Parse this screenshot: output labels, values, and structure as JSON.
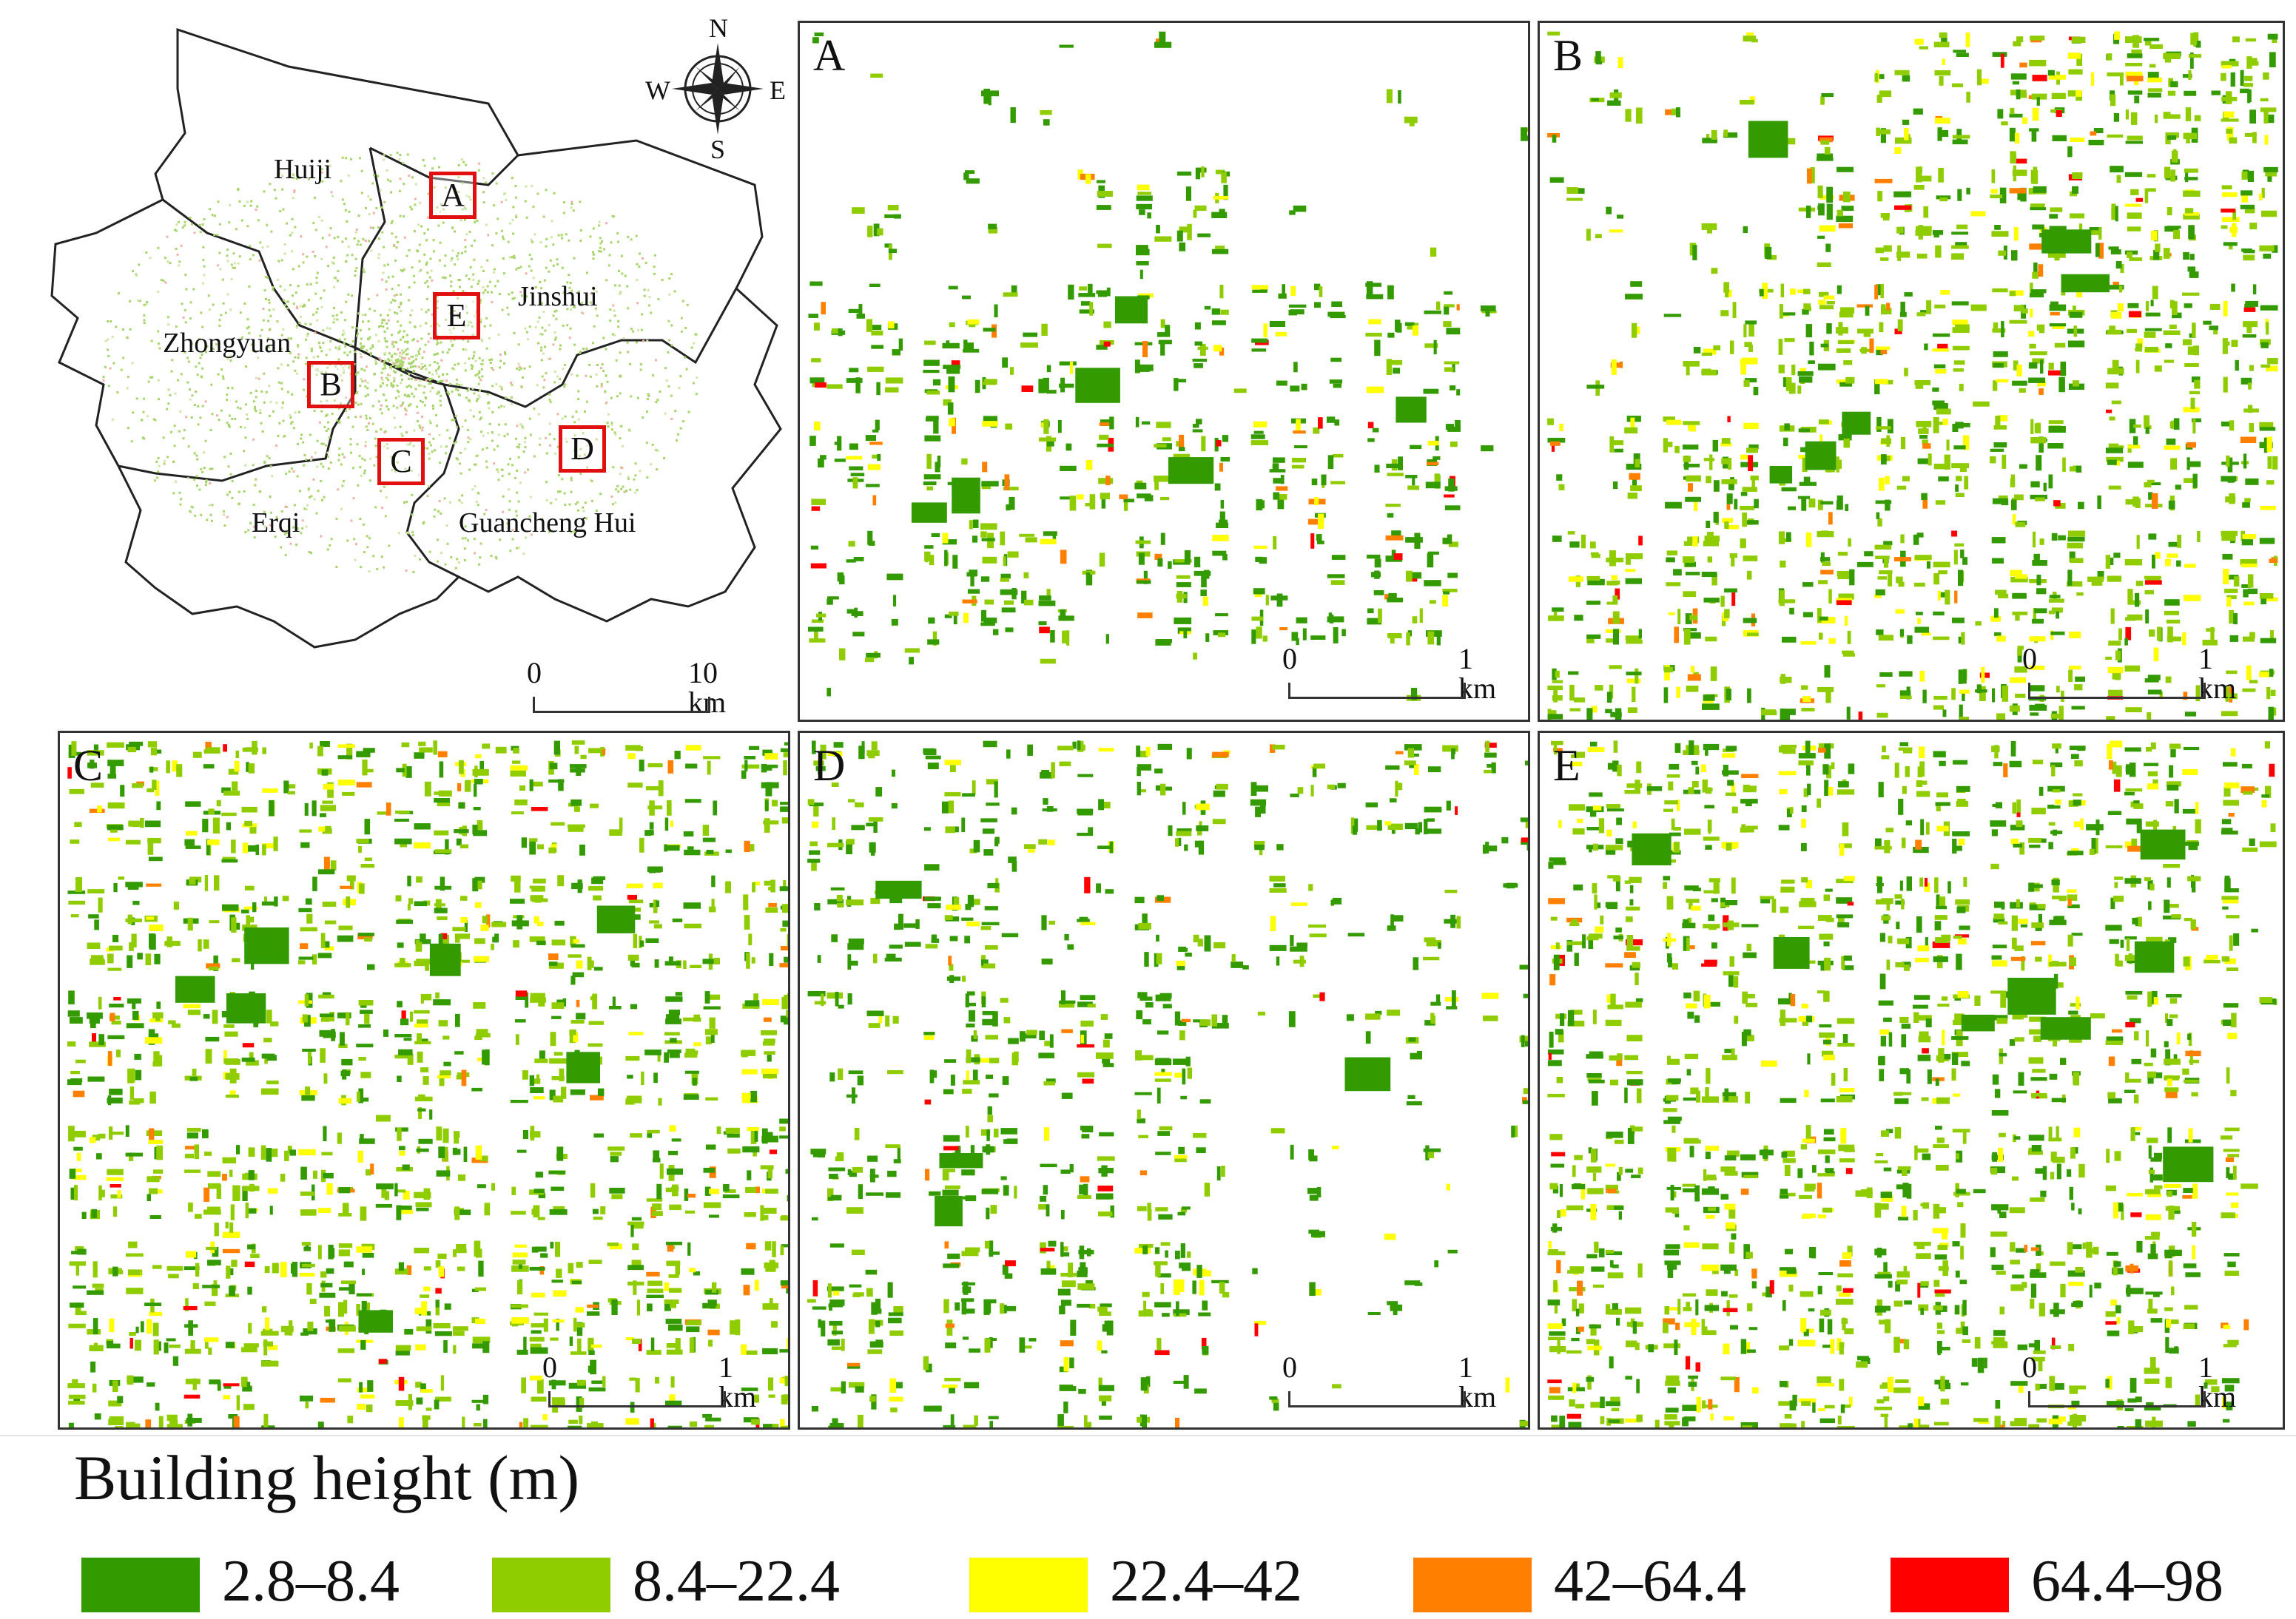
{
  "overview": {
    "districts": [
      "Huiji",
      "Jinshui",
      "Zhongyuan",
      "Erqi",
      "Guancheng Hui"
    ],
    "compass": {
      "n": "N",
      "s": "S",
      "e": "E",
      "w": "W"
    },
    "boxes": [
      "A",
      "B",
      "C",
      "D",
      "E"
    ],
    "scale": {
      "start": "0",
      "end": "10 km"
    }
  },
  "panels": [
    {
      "id": "A",
      "scale_start": "0",
      "scale_end": "1 km"
    },
    {
      "id": "B",
      "scale_start": "0",
      "scale_end": "1 km"
    },
    {
      "id": "C",
      "scale_start": "0",
      "scale_end": "1 km"
    },
    {
      "id": "D",
      "scale_start": "0",
      "scale_end": "1 km"
    },
    {
      "id": "E",
      "scale_start": "0",
      "scale_end": "1 km"
    }
  ],
  "legend": {
    "title": "Building height (m)",
    "classes": [
      {
        "label": "2.8–8.4",
        "color": "#339a00"
      },
      {
        "label": "8.4–22.4",
        "color": "#8fcc00"
      },
      {
        "label": "22.4–42",
        "color": "#ffff00"
      },
      {
        "label": "42–64.4",
        "color": "#ff8000"
      },
      {
        "label": "64.4–98",
        "color": "#ff0000"
      }
    ]
  }
}
